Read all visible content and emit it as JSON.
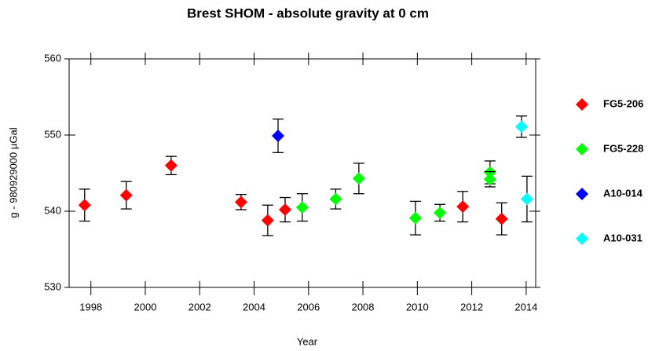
{
  "chart_data": {
    "type": "scatter",
    "title": "Brest SHOM - absolute gravity at 0 cm",
    "x_label": "Year",
    "y_label": "g - 980929000 µGal",
    "xlim": [
      1997.2,
      2014.35
    ],
    "ylim": [
      530,
      560
    ],
    "xticks": [
      1998,
      2000,
      2002,
      2004,
      2006,
      2008,
      2010,
      2012,
      2014
    ],
    "yticks": [
      530,
      540,
      550,
      560
    ],
    "legend": "right",
    "series": [
      {
        "name": "FG5-206",
        "color": "#ff0000",
        "x": [
          1997.77,
          1999.3,
          2000.95,
          2003.52,
          2004.5,
          2005.14,
          2011.67,
          2013.1
        ],
        "values": [
          540.8,
          542.1,
          546.0,
          541.2,
          538.8,
          540.2,
          540.6,
          539.0
        ],
        "errors": [
          2.1,
          1.8,
          1.2,
          1.0,
          2.0,
          1.6,
          2.0,
          2.1
        ]
      },
      {
        "name": "FG5-228",
        "color": "#00ff00",
        "x": [
          2005.77,
          2007.0,
          2007.85,
          2009.93,
          2010.83,
          2012.67,
          2012.67
        ],
        "values": [
          540.5,
          541.6,
          544.3,
          539.1,
          539.8,
          545.1,
          544.2
        ],
        "errors": [
          1.8,
          1.3,
          2.0,
          2.2,
          1.1,
          1.5,
          1.0
        ]
      },
      {
        "name": "A10-014",
        "color": "#0000ff",
        "x": [
          2004.88
        ],
        "values": [
          549.9
        ],
        "errors": [
          2.2
        ]
      },
      {
        "name": "A10-031",
        "color": "#00ffff",
        "x": [
          2013.83,
          2014.03
        ],
        "values": [
          551.1,
          541.6
        ],
        "errors": [
          1.4,
          3.0
        ]
      }
    ]
  }
}
